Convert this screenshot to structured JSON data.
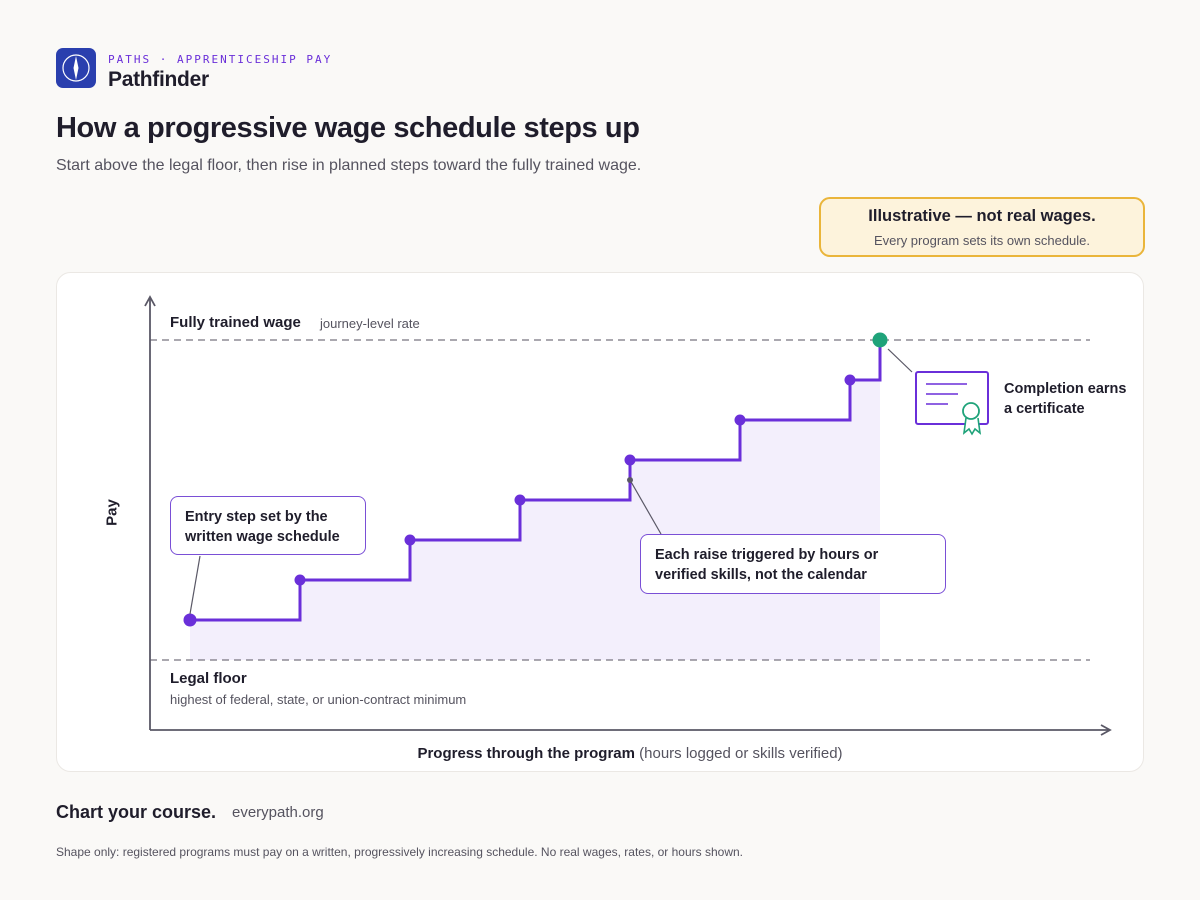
{
  "header": {
    "eyebrow": "PATHS · APPRENTICESHIP PAY",
    "brand": "Pathfinder"
  },
  "title": "How a progressive wage schedule steps up",
  "subtitle": "Start above the legal floor, then rise in planned steps toward the fully trained wage.",
  "notice": {
    "title": "Illustrative — not real wages.",
    "text": "Every program sets its own schedule."
  },
  "diagram": {
    "y_axis_label": "Pay",
    "x_axis_label": {
      "main": "Progress through the program",
      "detail": "(hours logged or skills verified)"
    },
    "top_line": {
      "label": "Fully trained wage",
      "detail": "journey-level rate"
    },
    "bottom_line": {
      "label": "Legal floor",
      "detail": "highest of federal, state, or union-contract minimum"
    },
    "callouts": [
      "Entry step set by the written wage schedule",
      "Each raise triggered by hours or verified skills, not the calendar",
      "Completion earns a certificate"
    ]
  },
  "footer": {
    "tagline": "Chart your course.",
    "url": "everypath.org",
    "note": "Shape only: registered programs must pay on a written, progressively increasing schedule. No real wages, rates, or hours shown."
  }
}
